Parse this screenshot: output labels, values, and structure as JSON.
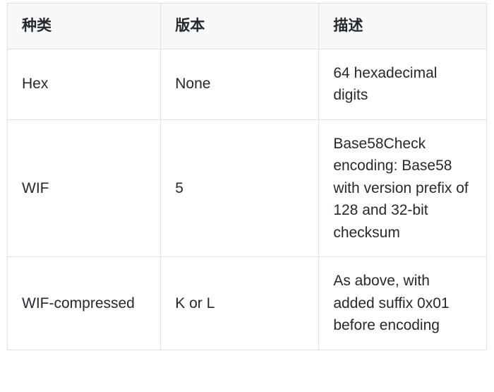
{
  "table": {
    "type": "table",
    "background_color": "#ffffff",
    "header_background": "#f6f8fa",
    "border_color": "#dfe2e5",
    "text_color": "#24292e",
    "font_size_pt": 16,
    "header_font_weight": 600,
    "column_widths_pct": [
      32,
      33,
      35
    ],
    "columns": [
      "种类",
      "版本",
      "描述"
    ],
    "rows": [
      [
        "Hex",
        "None",
        "64 hexadecimal digits"
      ],
      [
        "WIF",
        "5",
        "Base58Check encoding: Base58 with version prefix of 128 and 32-bit checksum"
      ],
      [
        "WIF-compressed",
        "K or L",
        "As above, with added suffix 0x01 before encoding"
      ]
    ]
  }
}
